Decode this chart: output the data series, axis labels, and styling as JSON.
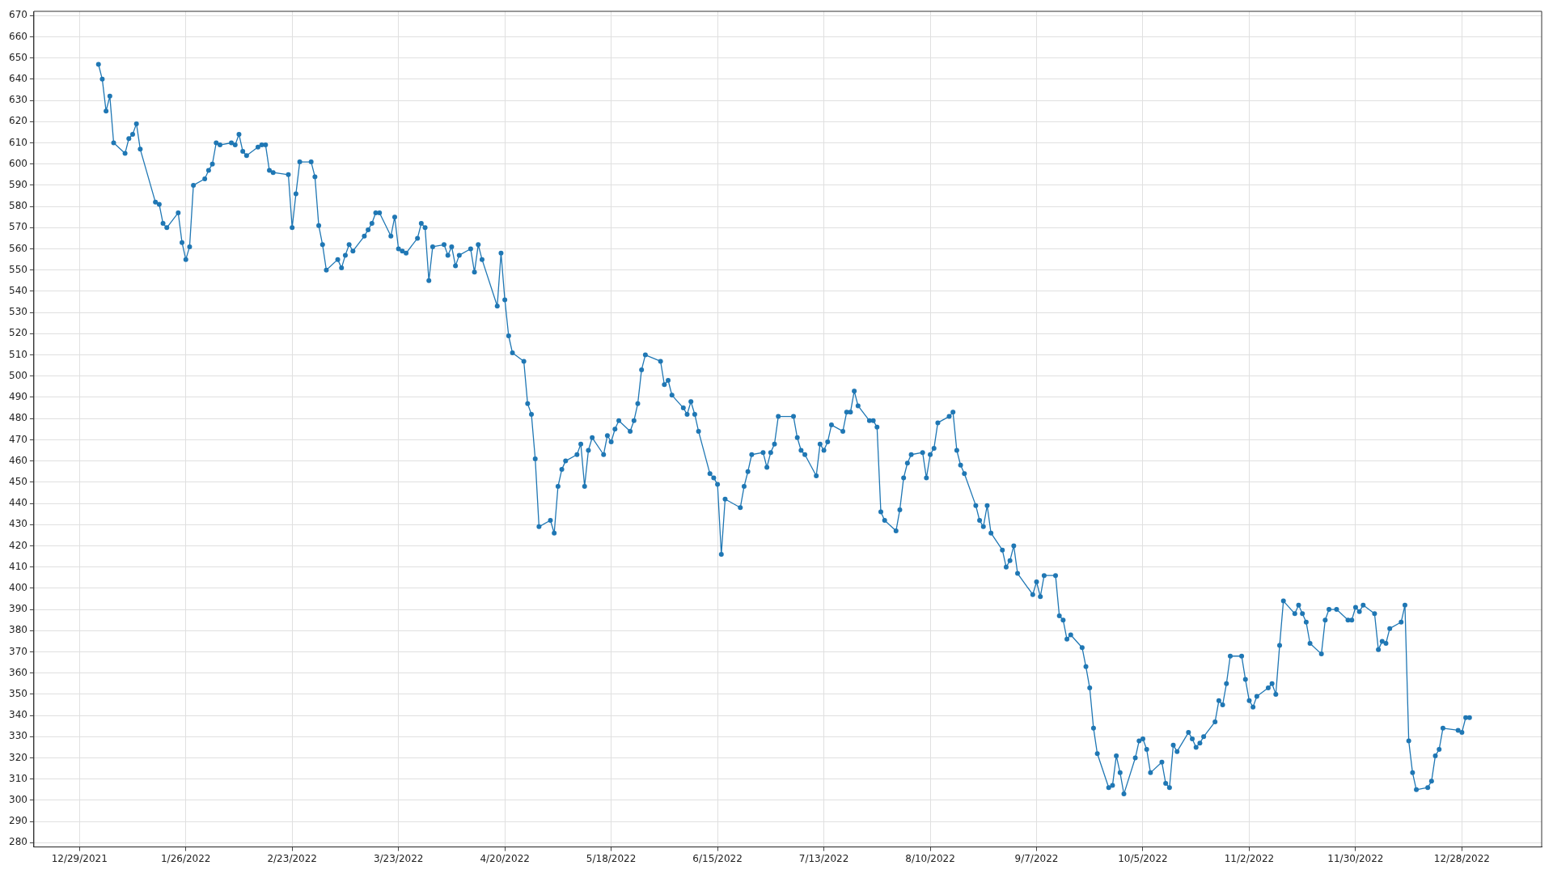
{
  "chart_data": {
    "type": "line",
    "marker": "circle",
    "grid": true,
    "line_style": "solid",
    "xlim": [
      "2021-12-17",
      "2023-01-18"
    ],
    "xticks": [
      {
        "value": "2021-12-29",
        "label": "12/29/2021"
      },
      {
        "value": "2022-01-26",
        "label": "1/26/2022"
      },
      {
        "value": "2022-02-23",
        "label": "2/23/2022"
      },
      {
        "value": "2022-03-23",
        "label": "3/23/2022"
      },
      {
        "value": "2022-04-20",
        "label": "4/20/2022"
      },
      {
        "value": "2022-05-18",
        "label": "5/18/2022"
      },
      {
        "value": "2022-06-15",
        "label": "6/15/2022"
      },
      {
        "value": "2022-07-13",
        "label": "7/13/2022"
      },
      {
        "value": "2022-08-10",
        "label": "8/10/2022"
      },
      {
        "value": "2022-09-07",
        "label": "9/7/2022"
      },
      {
        "value": "2022-10-05",
        "label": "10/5/2022"
      },
      {
        "value": "2022-11-02",
        "label": "11/2/2022"
      },
      {
        "value": "2022-11-30",
        "label": "11/30/2022"
      },
      {
        "value": "2022-12-28",
        "label": "12/28/2022"
      }
    ],
    "ylim": [
      278,
      672
    ],
    "yticks": [
      280,
      290,
      300,
      310,
      320,
      330,
      340,
      350,
      360,
      370,
      380,
      390,
      400,
      410,
      420,
      430,
      440,
      450,
      460,
      470,
      480,
      490,
      500,
      510,
      520,
      530,
      540,
      550,
      560,
      570,
      580,
      590,
      600,
      610,
      620,
      630,
      640,
      650,
      660,
      670
    ],
    "x": [
      "2022-01-03",
      "2022-01-04",
      "2022-01-05",
      "2022-01-06",
      "2022-01-07",
      "2022-01-10",
      "2022-01-11",
      "2022-01-12",
      "2022-01-13",
      "2022-01-14",
      "2022-01-18",
      "2022-01-19",
      "2022-01-20",
      "2022-01-21",
      "2022-01-24",
      "2022-01-25",
      "2022-01-26",
      "2022-01-27",
      "2022-01-28",
      "2022-01-31",
      "2022-02-01",
      "2022-02-02",
      "2022-02-03",
      "2022-02-04",
      "2022-02-07",
      "2022-02-08",
      "2022-02-09",
      "2022-02-10",
      "2022-02-11",
      "2022-02-14",
      "2022-02-15",
      "2022-02-16",
      "2022-02-17",
      "2022-02-18",
      "2022-02-22",
      "2022-02-23",
      "2022-02-24",
      "2022-02-25",
      "2022-02-28",
      "2022-03-01",
      "2022-03-02",
      "2022-03-03",
      "2022-03-04",
      "2022-03-07",
      "2022-03-08",
      "2022-03-09",
      "2022-03-10",
      "2022-03-11",
      "2022-03-14",
      "2022-03-15",
      "2022-03-16",
      "2022-03-17",
      "2022-03-18",
      "2022-03-21",
      "2022-03-22",
      "2022-03-23",
      "2022-03-24",
      "2022-03-25",
      "2022-03-28",
      "2022-03-29",
      "2022-03-30",
      "2022-03-31",
      "2022-04-01",
      "2022-04-04",
      "2022-04-05",
      "2022-04-06",
      "2022-04-07",
      "2022-04-08",
      "2022-04-11",
      "2022-04-12",
      "2022-04-13",
      "2022-04-14",
      "2022-04-18",
      "2022-04-19",
      "2022-04-20",
      "2022-04-21",
      "2022-04-22",
      "2022-04-25",
      "2022-04-26",
      "2022-04-27",
      "2022-04-28",
      "2022-04-29",
      "2022-05-02",
      "2022-05-03",
      "2022-05-04",
      "2022-05-05",
      "2022-05-06",
      "2022-05-09",
      "2022-05-10",
      "2022-05-11",
      "2022-05-12",
      "2022-05-13",
      "2022-05-16",
      "2022-05-17",
      "2022-05-18",
      "2022-05-19",
      "2022-05-20",
      "2022-05-23",
      "2022-05-24",
      "2022-05-25",
      "2022-05-26",
      "2022-05-27",
      "2022-05-31",
      "2022-06-01",
      "2022-06-02",
      "2022-06-03",
      "2022-06-06",
      "2022-06-07",
      "2022-06-08",
      "2022-06-09",
      "2022-06-10",
      "2022-06-13",
      "2022-06-14",
      "2022-06-15",
      "2022-06-16",
      "2022-06-17",
      "2022-06-21",
      "2022-06-22",
      "2022-06-23",
      "2022-06-24",
      "2022-06-27",
      "2022-06-28",
      "2022-06-29",
      "2022-06-30",
      "2022-07-01",
      "2022-07-05",
      "2022-07-06",
      "2022-07-07",
      "2022-07-08",
      "2022-07-11",
      "2022-07-12",
      "2022-07-13",
      "2022-07-14",
      "2022-07-15",
      "2022-07-18",
      "2022-07-19",
      "2022-07-20",
      "2022-07-21",
      "2022-07-22",
      "2022-07-25",
      "2022-07-26",
      "2022-07-27",
      "2022-07-28",
      "2022-07-29",
      "2022-08-01",
      "2022-08-02",
      "2022-08-03",
      "2022-08-04",
      "2022-08-05",
      "2022-08-08",
      "2022-08-09",
      "2022-08-10",
      "2022-08-11",
      "2022-08-12",
      "2022-08-15",
      "2022-08-16",
      "2022-08-17",
      "2022-08-18",
      "2022-08-19",
      "2022-08-22",
      "2022-08-23",
      "2022-08-24",
      "2022-08-25",
      "2022-08-26",
      "2022-08-29",
      "2022-08-30",
      "2022-08-31",
      "2022-09-01",
      "2022-09-02",
      "2022-09-06",
      "2022-09-07",
      "2022-09-08",
      "2022-09-09",
      "2022-09-12",
      "2022-09-13",
      "2022-09-14",
      "2022-09-15",
      "2022-09-16",
      "2022-09-19",
      "2022-09-20",
      "2022-09-21",
      "2022-09-22",
      "2022-09-23",
      "2022-09-26",
      "2022-09-27",
      "2022-09-28",
      "2022-09-29",
      "2022-09-30",
      "2022-10-03",
      "2022-10-04",
      "2022-10-05",
      "2022-10-06",
      "2022-10-07",
      "2022-10-10",
      "2022-10-11",
      "2022-10-12",
      "2022-10-13",
      "2022-10-14",
      "2022-10-17",
      "2022-10-18",
      "2022-10-19",
      "2022-10-20",
      "2022-10-21",
      "2022-10-24",
      "2022-10-25",
      "2022-10-26",
      "2022-10-27",
      "2022-10-28",
      "2022-10-31",
      "2022-11-01",
      "2022-11-02",
      "2022-11-03",
      "2022-11-04",
      "2022-11-07",
      "2022-11-08",
      "2022-11-09",
      "2022-11-10",
      "2022-11-11",
      "2022-11-14",
      "2022-11-15",
      "2022-11-16",
      "2022-11-17",
      "2022-11-18",
      "2022-11-21",
      "2022-11-22",
      "2022-11-23",
      "2022-11-25",
      "2022-11-28",
      "2022-11-29",
      "2022-11-30",
      "2022-12-01",
      "2022-12-02",
      "2022-12-05",
      "2022-12-06",
      "2022-12-07",
      "2022-12-08",
      "2022-12-09",
      "2022-12-12",
      "2022-12-13",
      "2022-12-14",
      "2022-12-15",
      "2022-12-16",
      "2022-12-19",
      "2022-12-20",
      "2022-12-21",
      "2022-12-22",
      "2022-12-23",
      "2022-12-27",
      "2022-12-28",
      "2022-12-29",
      "2022-12-30"
    ],
    "series": [
      {
        "color": "#1f77b4",
        "values": [
          647,
          640,
          625,
          632,
          610,
          605,
          612,
          614,
          619,
          607,
          582,
          581,
          572,
          570,
          577,
          563,
          555,
          561,
          590,
          593,
          597,
          600,
          610,
          609,
          610,
          609,
          614,
          606,
          604,
          608,
          609,
          609,
          597,
          596,
          595,
          570,
          586,
          601,
          601,
          594,
          571,
          562,
          550,
          555,
          551,
          557,
          562,
          559,
          566,
          569,
          572,
          577,
          577,
          566,
          575,
          560,
          559,
          558,
          565,
          572,
          570,
          545,
          561,
          562,
          557,
          561,
          552,
          557,
          560,
          549,
          562,
          555,
          533,
          558,
          536,
          519,
          511,
          507,
          487,
          482,
          461,
          429,
          432,
          426,
          448,
          456,
          460,
          463,
          468,
          448,
          465,
          471,
          463,
          472,
          469,
          475,
          479,
          474,
          479,
          487,
          503,
          510,
          507,
          496,
          498,
          491,
          485,
          482,
          488,
          482,
          474,
          454,
          452,
          449,
          416,
          442,
          438,
          448,
          455,
          463,
          464,
          457,
          464,
          468,
          481,
          481,
          471,
          465,
          463,
          453,
          468,
          465,
          469,
          477,
          474,
          483,
          483,
          493,
          486,
          479,
          479,
          476,
          436,
          432,
          427,
          437,
          452,
          459,
          463,
          464,
          452,
          463,
          466,
          478,
          481,
          483,
          465,
          458,
          454,
          439,
          432,
          429,
          439,
          426,
          418,
          410,
          413,
          420,
          407,
          397,
          403,
          396,
          406,
          406,
          387,
          385,
          376,
          378,
          372,
          363,
          353,
          334,
          322,
          306,
          307,
          321,
          313,
          303,
          320,
          328,
          329,
          324,
          313,
          318,
          308,
          306,
          326,
          323,
          332,
          329,
          325,
          327,
          330,
          337,
          347,
          345,
          355,
          368,
          368,
          357,
          347,
          344,
          349,
          353,
          355,
          350,
          373,
          394,
          388,
          392,
          388,
          384,
          374,
          369,
          385,
          390,
          390,
          385,
          385,
          391,
          389,
          392,
          388,
          371,
          375,
          374,
          381,
          384,
          392,
          328,
          313,
          305,
          306,
          309,
          321,
          324,
          334,
          333,
          332,
          339,
          339
        ]
      }
    ]
  }
}
